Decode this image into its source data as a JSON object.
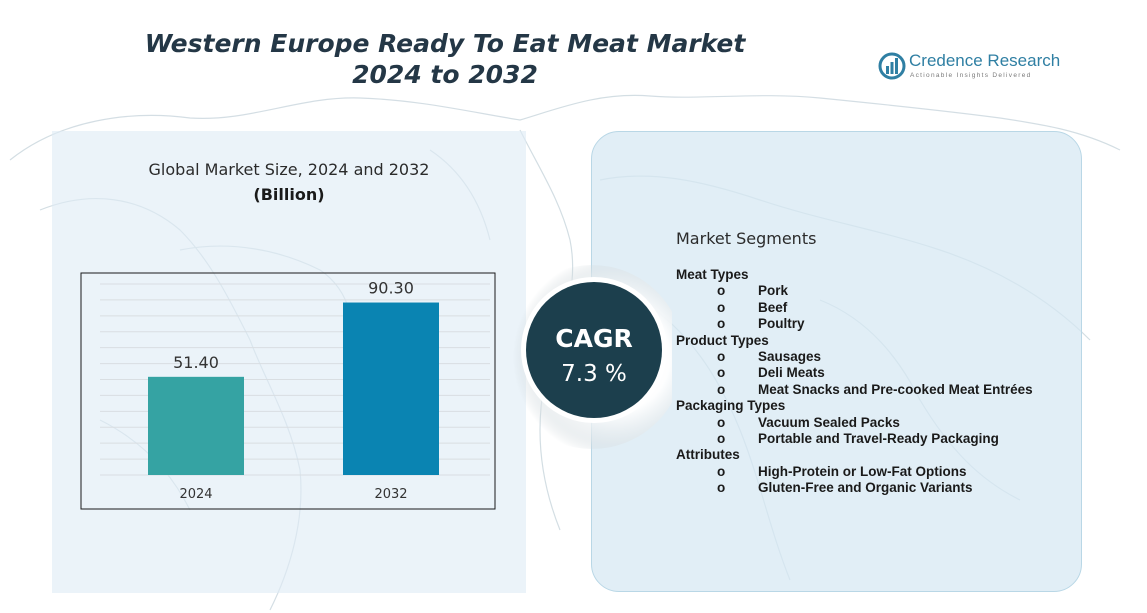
{
  "title_line1": "Western Europe Ready To Eat Meat Market",
  "title_line2": "2024 to 2032",
  "logo": {
    "name": "Credence Research",
    "tagline": "Actionable Insights Delivered"
  },
  "chart_data": {
    "type": "bar",
    "title": "Global Market Size, 2024 and 2032",
    "unit": "(Billion)",
    "categories": [
      "2024",
      "2032"
    ],
    "values": [
      51.4,
      90.3
    ],
    "value_labels": [
      "51.40",
      "90.30"
    ],
    "colors": [
      "#35a3a3",
      "#0a84b2"
    ],
    "ylim": [
      0,
      100
    ],
    "grid": true
  },
  "cagr": {
    "label": "CAGR",
    "value": "7.3 %"
  },
  "segments": {
    "title": "Market Segments",
    "bullet": "o",
    "groups": [
      {
        "name": "Meat Types",
        "items": [
          "Pork",
          "Beef",
          "Poultry"
        ]
      },
      {
        "name": "Product Types",
        "items": [
          "Sausages",
          "Deli Meats",
          "Meat Snacks and Pre-cooked Meat Entrées"
        ]
      },
      {
        "name": "Packaging Types",
        "items": [
          "Vacuum Sealed Packs",
          "Portable and Travel-Ready Packaging"
        ]
      },
      {
        "name": "Attributes",
        "items": [
          "High-Protein or Low-Fat Options",
          "Gluten-Free and Organic Variants"
        ]
      }
    ]
  }
}
